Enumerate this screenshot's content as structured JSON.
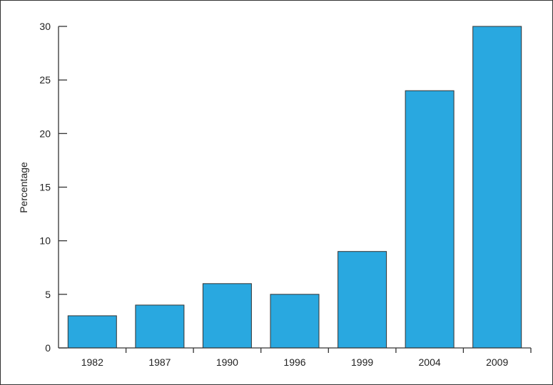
{
  "chart_data": {
    "type": "bar",
    "title": "",
    "xlabel": "",
    "ylabel": "Percentage",
    "categories": [
      "1982",
      "1987",
      "1990",
      "1996",
      "1999",
      "2004",
      "2009"
    ],
    "values": [
      3,
      4,
      6,
      5,
      9,
      24,
      30
    ],
    "ylim": [
      0,
      30
    ],
    "yticks": [
      0,
      5,
      10,
      15,
      20,
      25,
      30
    ],
    "grid": false,
    "legend": "none",
    "bar_color": "#29a8e0",
    "bar_edge_color": "#333333"
  }
}
